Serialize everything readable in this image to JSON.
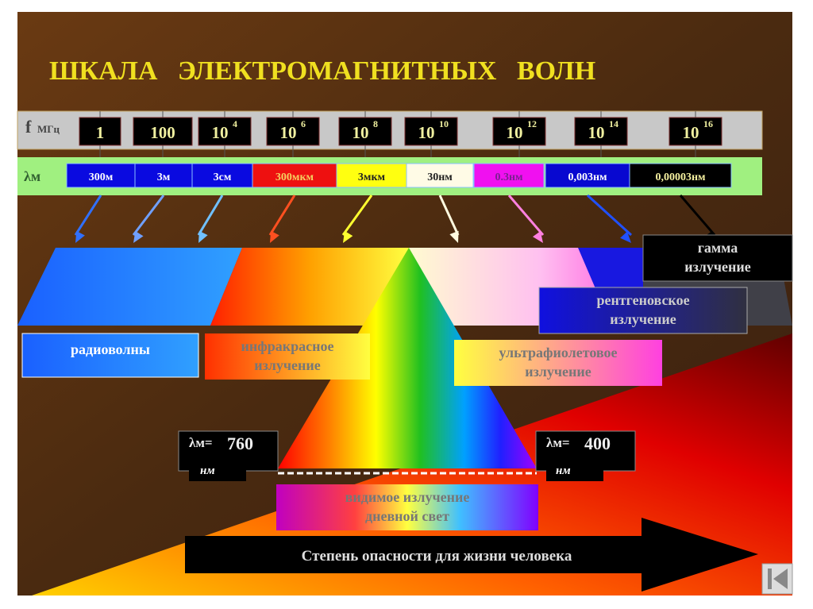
{
  "title": "ШКАЛА   ЭЛЕКТРОМАГНИТНЫХ   ВОЛН",
  "frequency_row": {
    "label": "f",
    "unit": "МГц",
    "values": [
      {
        "base": "1",
        "exp": ""
      },
      {
        "base": "100",
        "exp": ""
      },
      {
        "base": "10",
        "exp": "4"
      },
      {
        "base": "10",
        "exp": "6"
      },
      {
        "base": "10",
        "exp": "8"
      },
      {
        "base": "10",
        "exp": "10"
      },
      {
        "base": "10",
        "exp": "12"
      },
      {
        "base": "10",
        "exp": "14"
      },
      {
        "base": "10",
        "exp": "16"
      }
    ]
  },
  "wavelength_row": {
    "label": "λм",
    "cells": [
      {
        "text": "300м",
        "bg": "#0a0ae0",
        "fg": "#ffffff"
      },
      {
        "text": "3м",
        "bg": "#0a0ae0",
        "fg": "#ffffff"
      },
      {
        "text": "3см",
        "bg": "#0a0ae0",
        "fg": "#ffffff"
      },
      {
        "text": "300мкм",
        "bg": "#ee1010",
        "fg": "#f5d060"
      },
      {
        "text": "3мкм",
        "bg": "#ffff10",
        "fg": "#202020"
      },
      {
        "text": "30нм",
        "bg": "#fffbe6",
        "fg": "#202020"
      },
      {
        "text": "0.3нм",
        "bg": "#f010f0",
        "fg": "#7a2090"
      },
      {
        "text": "0,003нм",
        "bg": "#0808d0",
        "fg": "#ffffff"
      },
      {
        "text": "0,00003нм",
        "bg": "#000000",
        "fg": "#f5f0a0"
      }
    ]
  },
  "regions": {
    "radio": "радиоволны",
    "infrared": [
      "инфракрасное",
      "излучение"
    ],
    "ultraviolet": [
      "ультрафиолетовое",
      "излучение"
    ],
    "xray": [
      "рентгеновское",
      "излучение"
    ],
    "gamma": [
      "гамма",
      "излучение"
    ],
    "visible": [
      "видимое излучение",
      "дневной свет"
    ]
  },
  "visible_limits": {
    "left": {
      "label": "λм=",
      "value": "760",
      "unit": "нм"
    },
    "right": {
      "label": "λм=",
      "value": "400",
      "unit": "нм"
    }
  },
  "danger_arrow": "Степень опасности для жизни человека",
  "nav_icon": "first-slide-icon"
}
